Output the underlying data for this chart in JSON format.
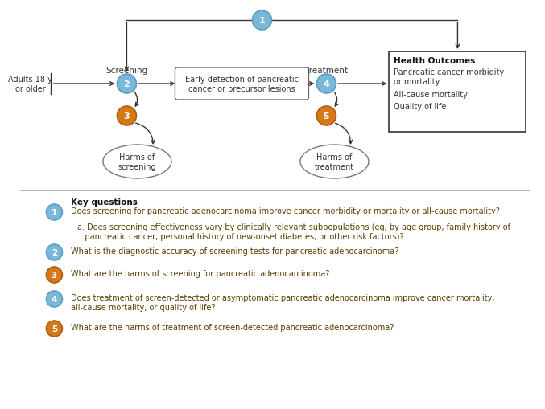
{
  "bg_color": "#ffffff",
  "blue_circle_color": "#7ab8d9",
  "orange_circle_color": "#d4781a",
  "blue_circle_edge": "#5a9fc0",
  "orange_circle_edge": "#b05e10",
  "arrow_color": "#333333",
  "box_edge_color": "#666666",
  "text_color": "#333333",
  "kq_text_color": "#5a3e00",
  "adults_text": "Adults 18 y\nor older",
  "screening_label": "Screening",
  "treatment_label": "Treatment",
  "early_detect_text": "Early detection of pancreatic\ncancer or precursor lesions",
  "health_outcomes_title": "Health Outcomes",
  "health_outcomes_items": [
    "Pancreatic cancer morbidity\nor mortality",
    "All-cause mortality",
    "Quality of life"
  ],
  "harms_screening_text": "Harms of\nscreening",
  "harms_treatment_text": "Harms of\ntreatment",
  "kq_section_title": "Key questions",
  "kq1_text": "Does screening for pancreatic adenocarcinoma improve cancer morbidity or mortality or all-cause mortality?",
  "kq1a_text": "a. Does screening effectiveness vary by clinically relevant subpopulations (eg, by age group, family history of\n   pancreatic cancer, personal history of new-onset diabetes, or other risk factors)?",
  "kq2_text": "What is the diagnostic accuracy of screening tests for pancreatic adenocarcinoma?",
  "kq3_text": "What are the harms of screening for pancreatic adenocarcinoma?",
  "kq4_text": "Does treatment of screen-detected or asymptomatic pancreatic adenocarcinoma improve cancer mortality,\nall-cause mortality, or quality of life?",
  "kq5_text": "What are the harms of treatment of screen-detected pancreatic adenocarcinoma?"
}
